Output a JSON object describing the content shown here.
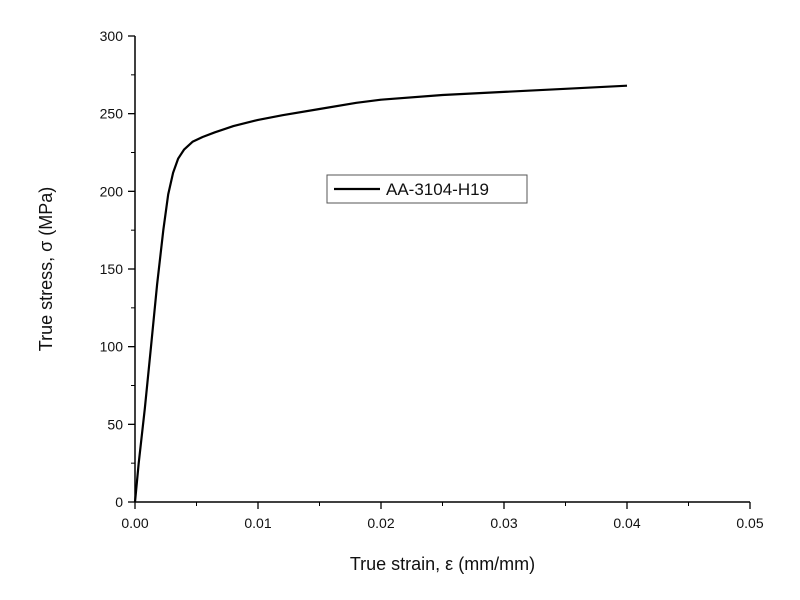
{
  "chart_data": {
    "type": "line",
    "title": "",
    "xlabel": "True strain, ε (mm/mm)",
    "ylabel": "True stress, σ (MPa)",
    "xlim": [
      0,
      0.05
    ],
    "ylim": [
      0,
      300
    ],
    "x_ticks": [
      "0.00",
      "0.01",
      "0.02",
      "0.03",
      "0.04",
      "0.05"
    ],
    "y_ticks": [
      "0",
      "50",
      "100",
      "150",
      "200",
      "250",
      "300"
    ],
    "grid": false,
    "legend_position": "center",
    "series": [
      {
        "name": "AA-3104-H19",
        "color": "#000000",
        "points": [
          [
            0.0,
            0
          ],
          [
            0.0003,
            25
          ],
          [
            0.0008,
            60
          ],
          [
            0.0013,
            100
          ],
          [
            0.0018,
            140
          ],
          [
            0.0023,
            175
          ],
          [
            0.0027,
            198
          ],
          [
            0.0031,
            212
          ],
          [
            0.0035,
            221
          ],
          [
            0.004,
            227
          ],
          [
            0.0047,
            232
          ],
          [
            0.0055,
            235
          ],
          [
            0.0065,
            238
          ],
          [
            0.008,
            242
          ],
          [
            0.01,
            246
          ],
          [
            0.012,
            249
          ],
          [
            0.015,
            253
          ],
          [
            0.018,
            257
          ],
          [
            0.02,
            259
          ],
          [
            0.025,
            262
          ],
          [
            0.03,
            264
          ],
          [
            0.035,
            266
          ],
          [
            0.04,
            268
          ]
        ]
      }
    ]
  }
}
